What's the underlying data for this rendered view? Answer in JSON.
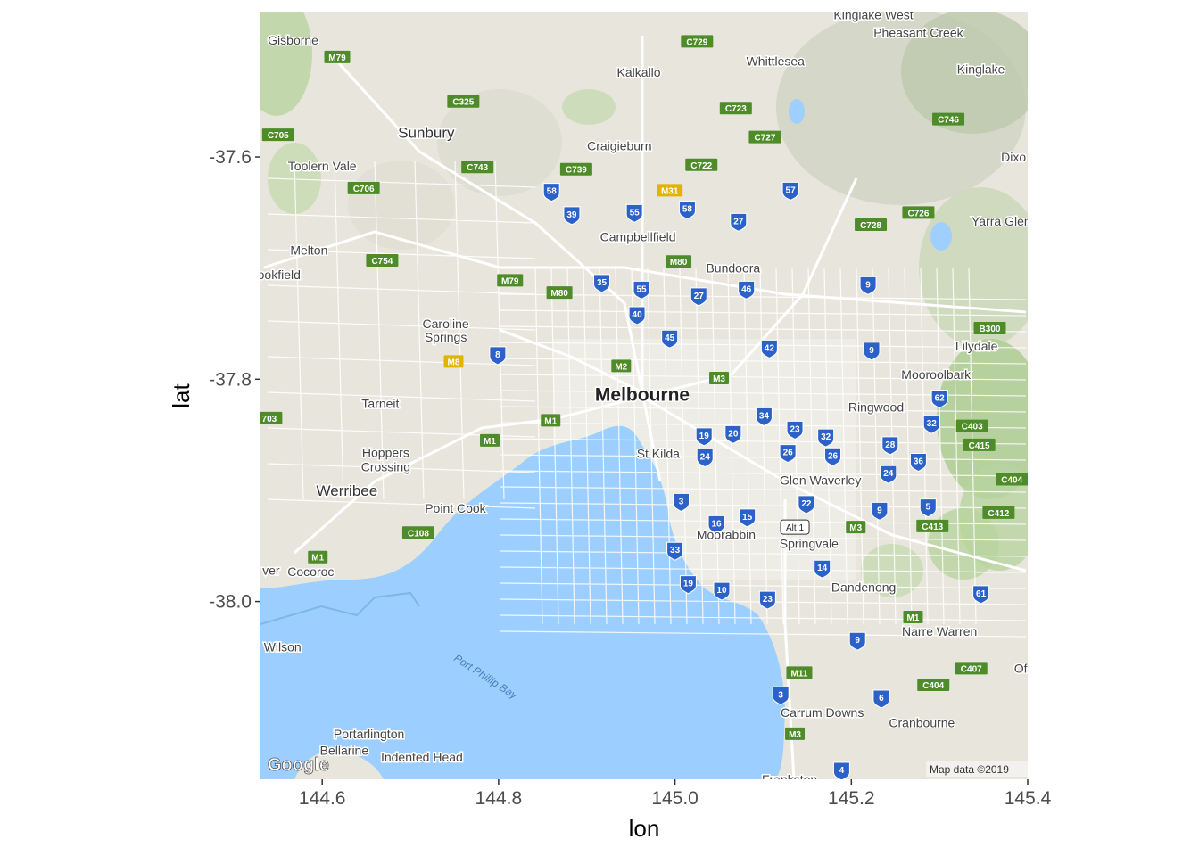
{
  "map": {
    "source": "Google",
    "attribution": "Map data ©2019",
    "water_label": "Port Phillip Bay",
    "extent": {
      "lon": [
        144.53,
        145.4
      ],
      "lat": [
        -38.16,
        -37.47
      ]
    },
    "places": [
      {
        "name": "Kinglake West",
        "lon": 145.225,
        "lat": -37.472,
        "size": 14
      },
      {
        "name": "Pheasant Creek",
        "lon": 145.276,
        "lat": -37.488,
        "size": 14
      },
      {
        "name": "Gisborne",
        "lon": 144.567,
        "lat": -37.495,
        "size": 14
      },
      {
        "name": "Whittlesea",
        "lon": 145.114,
        "lat": -37.514,
        "size": 14
      },
      {
        "name": "Kinglake",
        "lon": 145.347,
        "lat": -37.521,
        "size": 14
      },
      {
        "name": "Kalkallo",
        "lon": 144.959,
        "lat": -37.524,
        "size": 14
      },
      {
        "name": "Sunbury",
        "lon": 144.718,
        "lat": -37.578,
        "size": 17
      },
      {
        "name": "Craigieburn",
        "lon": 144.937,
        "lat": -37.59,
        "size": 14
      },
      {
        "name": "Dixo",
        "lon": 145.384,
        "lat": -37.6,
        "size": 14
      },
      {
        "name": "Toolern Vale",
        "lon": 144.6,
        "lat": -37.608,
        "size": 14
      },
      {
        "name": "Yarra Glen",
        "lon": 145.37,
        "lat": -37.658,
        "size": 14
      },
      {
        "name": "Campbellfield",
        "lon": 144.958,
        "lat": -37.672,
        "size": 14
      },
      {
        "name": "Melton",
        "lon": 144.585,
        "lat": -37.684,
        "size": 14
      },
      {
        "name": "Bundoora",
        "lon": 145.066,
        "lat": -37.7,
        "size": 14
      },
      {
        "name": "ookfield",
        "lon": 144.551,
        "lat": -37.706,
        "size": 14
      },
      {
        "name": "Caroline",
        "lon": 144.74,
        "lat": -37.75,
        "size": 14
      },
      {
        "name": "Springs",
        "lon": 144.74,
        "lat": -37.762,
        "size": 14
      },
      {
        "name": "Lilydale",
        "lon": 145.342,
        "lat": -37.77,
        "size": 14
      },
      {
        "name": "Mooroolbark",
        "lon": 145.296,
        "lat": -37.796,
        "size": 14
      },
      {
        "name": "Tarneit",
        "lon": 144.666,
        "lat": -37.822,
        "size": 14
      },
      {
        "name": "Ringwood",
        "lon": 145.228,
        "lat": -37.825,
        "size": 14
      },
      {
        "name": "Melbourne",
        "lon": 144.963,
        "lat": -37.814,
        "size": 19
      },
      {
        "name": "St Kilda",
        "lon": 144.981,
        "lat": -37.867,
        "size": 14
      },
      {
        "name": "Hoppers",
        "lon": 144.672,
        "lat": -37.866,
        "size": 14
      },
      {
        "name": "Crossing",
        "lon": 144.672,
        "lat": -37.879,
        "size": 14
      },
      {
        "name": "Glen Waverley",
        "lon": 145.165,
        "lat": -37.891,
        "size": 14
      },
      {
        "name": "Werribee",
        "lon": 144.628,
        "lat": -37.9,
        "size": 17
      },
      {
        "name": "Point Cook",
        "lon": 144.751,
        "lat": -37.916,
        "size": 14
      },
      {
        "name": "Moorabbin",
        "lon": 145.058,
        "lat": -37.94,
        "size": 14
      },
      {
        "name": "Springvale",
        "lon": 145.152,
        "lat": -37.948,
        "size": 14
      },
      {
        "name": "ver",
        "lon": 144.542,
        "lat": -37.972,
        "size": 14
      },
      {
        "name": "Cocoroc",
        "lon": 144.587,
        "lat": -37.973,
        "size": 14
      },
      {
        "name": "Dandenong",
        "lon": 145.214,
        "lat": -37.987,
        "size": 14
      },
      {
        "name": "Narre Warren",
        "lon": 145.3,
        "lat": -38.027,
        "size": 14
      },
      {
        "name": "Wilson",
        "lon": 144.555,
        "lat": -38.041,
        "size": 14
      },
      {
        "name": "Of",
        "lon": 145.392,
        "lat": -38.06,
        "size": 14
      },
      {
        "name": "Carrum Downs",
        "lon": 145.167,
        "lat": -38.1,
        "size": 14
      },
      {
        "name": "Cranbourne",
        "lon": 145.28,
        "lat": -38.109,
        "size": 14
      },
      {
        "name": "Portarlington",
        "lon": 144.653,
        "lat": -38.119,
        "size": 14
      },
      {
        "name": "Bellarine",
        "lon": 144.625,
        "lat": -38.134,
        "size": 14
      },
      {
        "name": "Indented Head",
        "lon": 144.713,
        "lat": -38.14,
        "size": 14
      },
      {
        "name": "Frankston",
        "lon": 145.13,
        "lat": -38.16,
        "size": 14
      }
    ],
    "route_shields": [
      {
        "label": "58",
        "lon": 144.86,
        "lat": -37.631
      },
      {
        "label": "39",
        "lon": 144.883,
        "lat": -37.652
      },
      {
        "label": "55",
        "lon": 144.954,
        "lat": -37.65
      },
      {
        "label": "58",
        "lon": 145.014,
        "lat": -37.647
      },
      {
        "label": "27",
        "lon": 145.072,
        "lat": -37.658
      },
      {
        "label": "57",
        "lon": 145.131,
        "lat": -37.63
      },
      {
        "label": "35",
        "lon": 144.917,
        "lat": -37.713
      },
      {
        "label": "55",
        "lon": 144.962,
        "lat": -37.719
      },
      {
        "label": "27",
        "lon": 145.027,
        "lat": -37.725
      },
      {
        "label": "46",
        "lon": 145.081,
        "lat": -37.719
      },
      {
        "label": "40",
        "lon": 144.957,
        "lat": -37.742
      },
      {
        "label": "45",
        "lon": 144.994,
        "lat": -37.763
      },
      {
        "label": "8",
        "lon": 144.799,
        "lat": -37.778
      },
      {
        "label": "42",
        "lon": 145.107,
        "lat": -37.772
      },
      {
        "label": "9",
        "lon": 145.219,
        "lat": -37.715
      },
      {
        "label": "9",
        "lon": 145.223,
        "lat": -37.774
      },
      {
        "label": "62",
        "lon": 145.3,
        "lat": -37.817
      },
      {
        "label": "32",
        "lon": 145.291,
        "lat": -37.84
      },
      {
        "label": "34",
        "lon": 145.101,
        "lat": -37.833
      },
      {
        "label": "23",
        "lon": 145.136,
        "lat": -37.845
      },
      {
        "label": "32",
        "lon": 145.171,
        "lat": -37.852
      },
      {
        "label": "19",
        "lon": 145.033,
        "lat": -37.851
      },
      {
        "label": "20",
        "lon": 145.066,
        "lat": -37.849
      },
      {
        "label": "28",
        "lon": 145.244,
        "lat": -37.859
      },
      {
        "label": "26",
        "lon": 145.128,
        "lat": -37.866
      },
      {
        "label": "26",
        "lon": 145.179,
        "lat": -37.869
      },
      {
        "label": "24",
        "lon": 145.034,
        "lat": -37.87
      },
      {
        "label": "36",
        "lon": 145.276,
        "lat": -37.874
      },
      {
        "label": "24",
        "lon": 145.242,
        "lat": -37.885
      },
      {
        "label": "22",
        "lon": 145.149,
        "lat": -37.912
      },
      {
        "label": "3",
        "lon": 145.007,
        "lat": -37.91
      },
      {
        "label": "9",
        "lon": 145.232,
        "lat": -37.918
      },
      {
        "label": "5",
        "lon": 145.287,
        "lat": -37.915
      },
      {
        "label": "16",
        "lon": 145.047,
        "lat": -37.93
      },
      {
        "label": "15",
        "lon": 145.082,
        "lat": -37.924
      },
      {
        "label": "33",
        "lon": 145.0,
        "lat": -37.954
      },
      {
        "label": "14",
        "lon": 145.167,
        "lat": -37.97
      },
      {
        "label": "19",
        "lon": 145.015,
        "lat": -37.984
      },
      {
        "label": "10",
        "lon": 145.053,
        "lat": -37.99
      },
      {
        "label": "23",
        "lon": 145.105,
        "lat": -37.998
      },
      {
        "label": "61",
        "lon": 145.347,
        "lat": -37.993
      },
      {
        "label": "9",
        "lon": 145.207,
        "lat": -38.035
      },
      {
        "label": "3",
        "lon": 145.12,
        "lat": -38.084
      },
      {
        "label": "6",
        "lon": 145.234,
        "lat": -38.087
      },
      {
        "label": "4",
        "lon": 145.189,
        "lat": -38.152
      }
    ],
    "road_labels": [
      {
        "label": "C729",
        "lon": 145.025,
        "lat": -37.496
      },
      {
        "label": "M79",
        "lon": 144.617,
        "lat": -37.51
      },
      {
        "label": "C325",
        "lon": 144.76,
        "lat": -37.55
      },
      {
        "label": "C723",
        "lon": 145.069,
        "lat": -37.556
      },
      {
        "label": "C746",
        "lon": 145.31,
        "lat": -37.566
      },
      {
        "label": "C705",
        "lon": 144.55,
        "lat": -37.58
      },
      {
        "label": "C727",
        "lon": 145.102,
        "lat": -37.582
      },
      {
        "label": "C743",
        "lon": 144.776,
        "lat": -37.609
      },
      {
        "label": "C739",
        "lon": 144.888,
        "lat": -37.611
      },
      {
        "label": "C722",
        "lon": 145.03,
        "lat": -37.607
      },
      {
        "label": "M31",
        "lon": 144.994,
        "lat": -37.63
      },
      {
        "label": "C706",
        "lon": 144.647,
        "lat": -37.628
      },
      {
        "label": "C726",
        "lon": 145.276,
        "lat": -37.65
      },
      {
        "label": "C728",
        "lon": 145.222,
        "lat": -37.661
      },
      {
        "label": "C754",
        "lon": 144.668,
        "lat": -37.693
      },
      {
        "label": "M80",
        "lon": 145.004,
        "lat": -37.694
      },
      {
        "label": "M79",
        "lon": 144.813,
        "lat": -37.711
      },
      {
        "label": "M80",
        "lon": 144.869,
        "lat": -37.722
      },
      {
        "label": "B300",
        "lon": 145.357,
        "lat": -37.754
      },
      {
        "label": "M8",
        "lon": 144.749,
        "lat": -37.784
      },
      {
        "label": "M2",
        "lon": 144.939,
        "lat": -37.788
      },
      {
        "label": "M3",
        "lon": 145.05,
        "lat": -37.799
      },
      {
        "label": "703",
        "lon": 144.54,
        "lat": -37.835
      },
      {
        "label": "M1",
        "lon": 144.859,
        "lat": -37.837
      },
      {
        "label": "C403",
        "lon": 145.337,
        "lat": -37.842
      },
      {
        "label": "M1",
        "lon": 144.79,
        "lat": -37.855
      },
      {
        "label": "C415",
        "lon": 145.345,
        "lat": -37.859
      },
      {
        "label": "C404",
        "lon": 145.382,
        "lat": -37.89
      },
      {
        "label": "C412",
        "lon": 145.367,
        "lat": -37.92
      },
      {
        "label": "M3",
        "lon": 145.205,
        "lat": -37.933
      },
      {
        "label": "C413",
        "lon": 145.292,
        "lat": -37.932
      },
      {
        "label": "C108",
        "lon": 144.709,
        "lat": -37.938
      },
      {
        "label": "M1",
        "lon": 144.595,
        "lat": -37.96
      },
      {
        "label": "M1",
        "lon": 145.27,
        "lat": -38.014
      },
      {
        "label": "C407",
        "lon": 145.336,
        "lat": -38.06
      },
      {
        "label": "M11",
        "lon": 145.141,
        "lat": -38.064
      },
      {
        "label": "C404",
        "lon": 145.293,
        "lat": -38.075
      },
      {
        "label": "M3",
        "lon": 145.136,
        "lat": -38.119
      }
    ],
    "alt_route": {
      "label": "Alt 1",
      "lon": 145.136,
      "lat": -37.933
    }
  },
  "chart_data": {
    "type": "scatter",
    "title": "",
    "xlabel": "lon",
    "ylabel": "lat",
    "xlim": [
      144.53,
      145.4
    ],
    "ylim": [
      -38.16,
      -37.47
    ],
    "xticks": [
      144.6,
      144.8,
      145.0,
      145.2,
      145.4
    ],
    "xtick_labels": [
      "144.6",
      "144.8",
      "145.0",
      "145.2",
      "145.4"
    ],
    "yticks": [
      -37.6,
      -37.8,
      -38.0
    ],
    "ytick_labels": [
      "-37.6",
      "-37.8",
      "-38.0"
    ],
    "grid": false,
    "legend": "none",
    "background": "Google map tile"
  }
}
